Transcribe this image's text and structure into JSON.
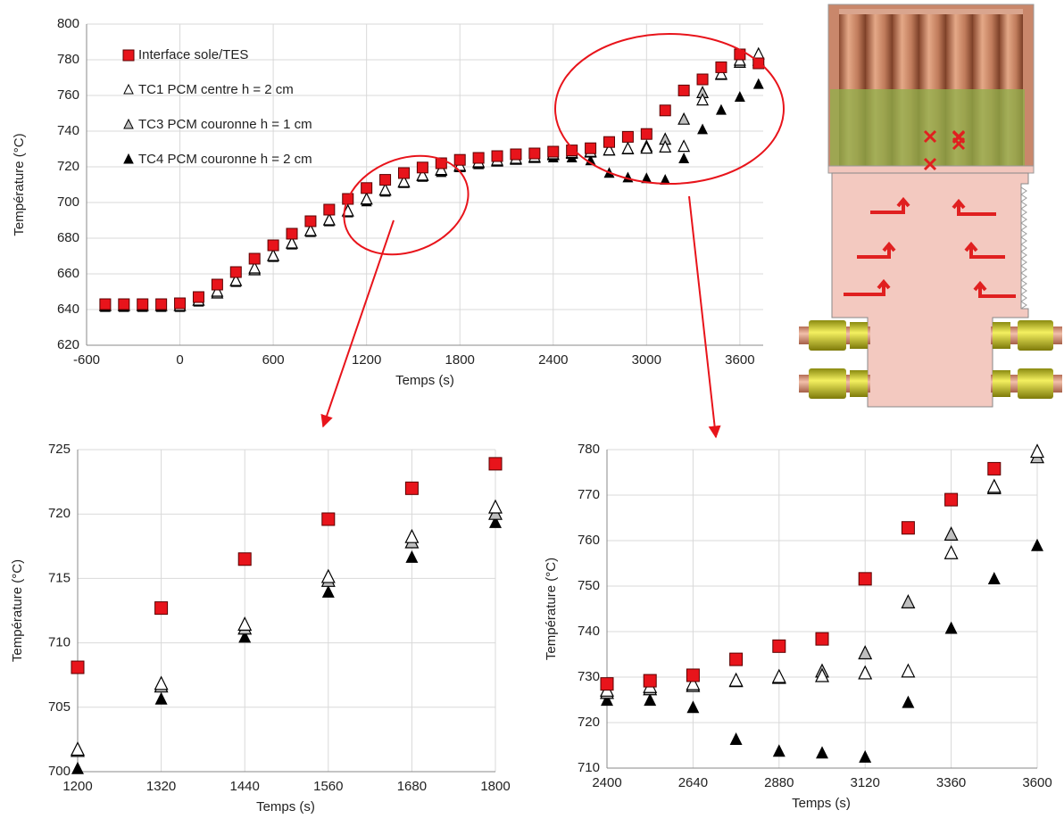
{
  "chart_data": [
    {
      "type": "scatter",
      "xlabel": "Temps (s)",
      "ylabel": "Température (°C)",
      "x": [
        -480,
        -360,
        -240,
        -120,
        0,
        120,
        240,
        360,
        480,
        600,
        720,
        840,
        960,
        1080,
        1200,
        1320,
        1440,
        1560,
        1680,
        1800,
        1920,
        2040,
        2160,
        2280,
        2400,
        2520,
        2640,
        2760,
        2880,
        3000,
        3120,
        3240,
        3360,
        3480,
        3600,
        3720
      ],
      "xlim": [
        -600,
        3750
      ],
      "xticks": [
        -600,
        0,
        600,
        1200,
        1800,
        2400,
        3000,
        3600
      ],
      "ylim": [
        620,
        800
      ],
      "yticks": [
        620,
        640,
        660,
        680,
        700,
        720,
        740,
        760,
        780,
        800
      ],
      "grid": true,
      "legend": "upper left",
      "series": [
        {
          "name": "Interface sole/TES",
          "color": "#e8141b",
          "marker": "square",
          "values": [
            643,
            643,
            643,
            643,
            643.5,
            647,
            654,
            661,
            668.5,
            676,
            682.5,
            689.5,
            696,
            702,
            708.1,
            712.7,
            716.5,
            719.6,
            722,
            723.9,
            725,
            726,
            727,
            727.5,
            728.5,
            729.2,
            730.4,
            733.9,
            736.8,
            738.4,
            751.6,
            762.8,
            769,
            775.8,
            783,
            778
          ]
        },
        {
          "name": "TC1 PCM centre h = 2 cm",
          "color": "#ffffff",
          "marker": "triangle",
          "values": [
            642,
            642,
            642,
            642,
            642,
            645,
            650,
            656,
            663,
            670,
            677,
            684,
            690,
            695,
            701.7,
            706.8,
            711.4,
            715.1,
            718.2,
            720.5,
            722.5,
            723.5,
            724.5,
            725.5,
            727,
            727.8,
            728.4,
            729.2,
            730,
            730.2,
            730.8,
            731.2,
            757.2,
            771.8,
            779.5,
            783
          ]
        },
        {
          "name": "TC3 PCM couronne h = 1 cm",
          "color": "#bfbfbf",
          "marker": "triangle",
          "values": [
            642,
            642,
            642,
            642,
            642,
            645,
            649,
            656,
            662,
            670,
            677,
            684,
            690,
            695,
            701.6,
            706.6,
            711.1,
            714.8,
            717.8,
            720,
            722,
            723,
            724,
            725,
            726.5,
            727.3,
            728,
            729.1,
            729.8,
            731.2,
            735.2,
            746.4,
            761.3,
            771.5,
            778.3,
            779.5
          ]
        },
        {
          "name": "TC4 PCM couronne h = 2 cm",
          "color": "#000000",
          "marker": "triangle",
          "values": [
            641,
            641,
            641,
            641,
            641,
            644,
            649,
            655,
            662,
            669,
            676,
            683,
            689,
            694,
            700.2,
            705.6,
            710.4,
            713.9,
            716.6,
            719.3,
            721,
            722.5,
            723.5,
            724.5,
            724.8,
            724.8,
            723.2,
            716.2,
            713.6,
            713.2,
            712.3,
            724.3,
            740.6,
            751.5,
            758.8,
            766
          ]
        }
      ]
    },
    {
      "type": "scatter",
      "xlabel": "Temps (s)",
      "ylabel": "Température (°C)",
      "x": [
        1200,
        1320,
        1440,
        1560,
        1680,
        1800
      ],
      "xlim": [
        1200,
        1800
      ],
      "xticks": [
        1200,
        1320,
        1440,
        1560,
        1680,
        1800
      ],
      "ylim": [
        700,
        725
      ],
      "yticks": [
        700,
        705,
        710,
        715,
        720,
        725
      ],
      "grid": true,
      "series": [
        {
          "color": "#e8141b",
          "marker": "square",
          "values": [
            708.1,
            712.7,
            716.5,
            719.6,
            722,
            723.9
          ]
        },
        {
          "color": "#ffffff",
          "marker": "triangle",
          "values": [
            701.7,
            706.8,
            711.4,
            715.1,
            718.2,
            720.5
          ]
        },
        {
          "color": "#bfbfbf",
          "marker": "triangle",
          "values": [
            701.6,
            706.6,
            711.1,
            714.8,
            717.8,
            720
          ]
        },
        {
          "color": "#000000",
          "marker": "triangle",
          "values": [
            700.2,
            705.6,
            710.4,
            713.9,
            716.6,
            719.3
          ]
        }
      ]
    },
    {
      "type": "scatter",
      "xlabel": "Temps (s)",
      "ylabel": "Température (°C)",
      "x": [
        2400,
        2520,
        2640,
        2760,
        2880,
        3000,
        3120,
        3240,
        3360,
        3480,
        3600
      ],
      "xlim": [
        2400,
        3600
      ],
      "xticks": [
        2400,
        2640,
        2880,
        3120,
        3360,
        3600
      ],
      "ylim": [
        710,
        780
      ],
      "yticks": [
        710,
        720,
        730,
        740,
        750,
        760,
        770,
        780
      ],
      "grid": true,
      "series": [
        {
          "color": "#e8141b",
          "marker": "square",
          "values": [
            728.5,
            729.2,
            730.4,
            733.9,
            736.8,
            738.4,
            751.6,
            762.8,
            769,
            775.8,
            null
          ]
        },
        {
          "color": "#ffffff",
          "marker": "triangle",
          "values": [
            727,
            727.8,
            728.4,
            729.2,
            730,
            730.2,
            730.8,
            731.2,
            757.2,
            771.8,
            779.5
          ]
        },
        {
          "color": "#bfbfbf",
          "marker": "triangle",
          "values": [
            726.5,
            727.3,
            728,
            729.1,
            729.8,
            731.2,
            735.2,
            746.4,
            761.3,
            771.5,
            778.3
          ]
        },
        {
          "color": "#000000",
          "marker": "triangle",
          "values": [
            724.8,
            724.8,
            723.2,
            716.2,
            713.6,
            713.2,
            712.3,
            724.3,
            740.6,
            751.5,
            758.8
          ]
        }
      ]
    }
  ]
}
